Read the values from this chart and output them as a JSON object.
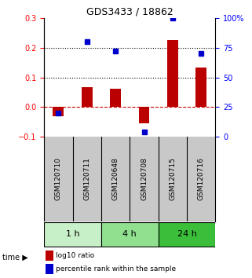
{
  "title": "GDS3433 / 18862",
  "samples": [
    "GSM120710",
    "GSM120711",
    "GSM120648",
    "GSM120708",
    "GSM120715",
    "GSM120716"
  ],
  "log10_ratio": [
    -0.03,
    0.068,
    0.062,
    -0.055,
    0.225,
    0.133
  ],
  "percentile_rank_pct": [
    20,
    80,
    72,
    4,
    100,
    70
  ],
  "time_groups": [
    {
      "label": "1 h",
      "samples": [
        0,
        1
      ],
      "color": "#c8f0c8"
    },
    {
      "label": "4 h",
      "samples": [
        2,
        3
      ],
      "color": "#90e090"
    },
    {
      "label": "24 h",
      "samples": [
        4,
        5
      ],
      "color": "#3bbf3b"
    }
  ],
  "left_ylim": [
    -0.1,
    0.3
  ],
  "right_ylim": [
    0,
    100
  ],
  "left_yticks": [
    -0.1,
    0.0,
    0.1,
    0.2,
    0.3
  ],
  "right_yticks": [
    0,
    25,
    50,
    75,
    100
  ],
  "right_yticklabels": [
    "0",
    "25",
    "50",
    "75",
    "100%"
  ],
  "bar_color": "#bb0000",
  "dot_color": "#0000cc",
  "zero_line_color": "#cc0000",
  "grid_color": "#000000",
  "background_color": "#ffffff",
  "plot_bg_color": "#ffffff",
  "label_bg_color": "#c8c8c8",
  "legend_bar_label": "log10 ratio",
  "legend_dot_label": "percentile rank within the sample"
}
